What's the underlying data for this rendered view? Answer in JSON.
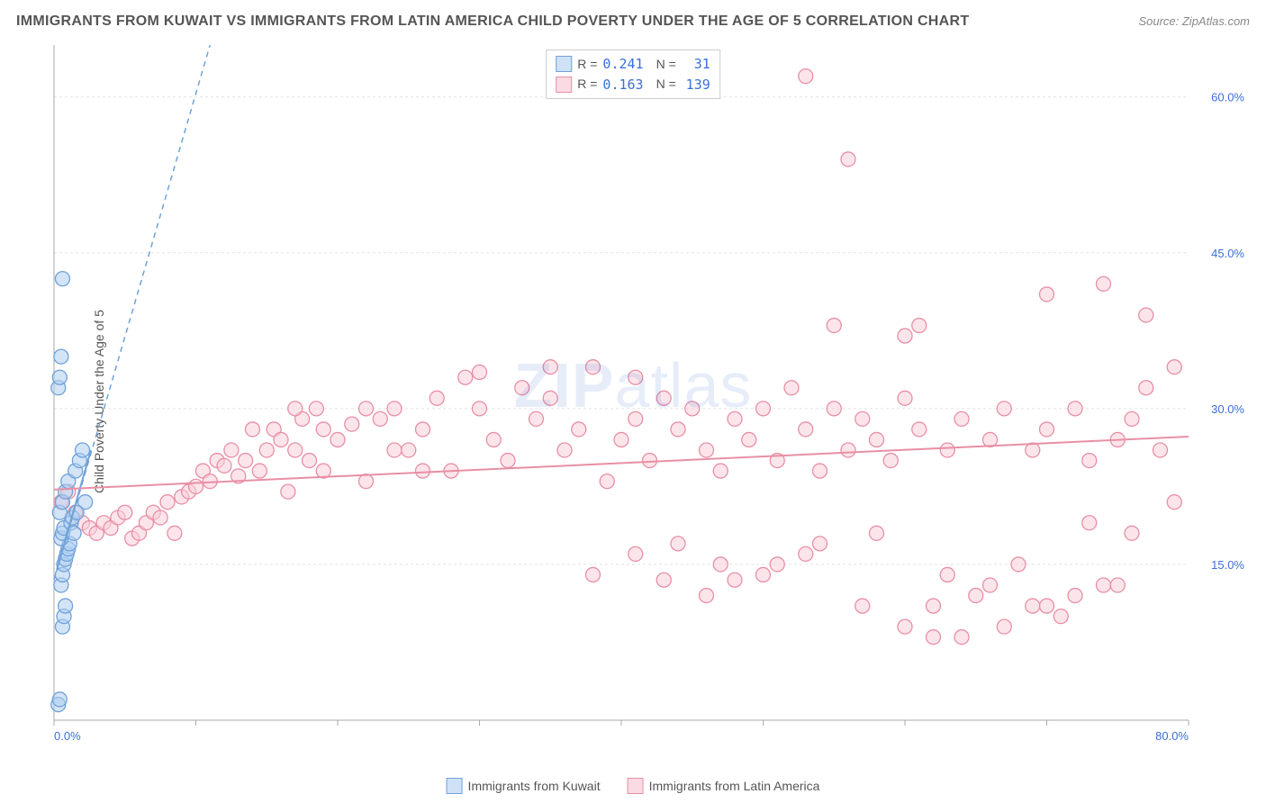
{
  "header": {
    "title": "IMMIGRANTS FROM KUWAIT VS IMMIGRANTS FROM LATIN AMERICA CHILD POVERTY UNDER THE AGE OF 5 CORRELATION CHART",
    "source": "Source: ZipAtlas.com"
  },
  "watermark": {
    "part1": "ZIP",
    "part2": "atlas"
  },
  "y_axis_label": "Child Poverty Under the Age of 5",
  "chart": {
    "type": "scatter",
    "xlim": [
      0,
      80
    ],
    "ylim": [
      0,
      65
    ],
    "plot_bg": "#ffffff",
    "grid_color": "#e2e2e2",
    "axis_color": "#aaaaaa",
    "tick_label_color": "#3b6fd6",
    "x_ticks": [
      0,
      10,
      20,
      30,
      40,
      50,
      60,
      70,
      80
    ],
    "x_tick_labels": {
      "0": "0.0%",
      "80": "80.0%"
    },
    "y_ticks": [
      15,
      30,
      45,
      60
    ],
    "y_tick_labels": {
      "15": "15.0%",
      "30": "30.0%",
      "45": "45.0%",
      "60": "60.0%"
    },
    "marker_radius": 8,
    "marker_stroke_width": 1.3,
    "trend_line_width": 2,
    "dashed_pattern": "6,5"
  },
  "series": [
    {
      "id": "kuwait",
      "label": "Immigrants from Kuwait",
      "fill": "#aecdf0",
      "stroke": "#6fa2d9",
      "swatch_fill": "#cfe1f7",
      "swatch_border": "#6fa2d9",
      "R": "0.241",
      "N": "31",
      "trend": {
        "solid": [
          [
            0.2,
            14.5
          ],
          [
            2.6,
            26
          ]
        ],
        "dashed": [
          [
            0,
            13.5
          ],
          [
            11,
            65
          ]
        ]
      },
      "points": [
        [
          0.3,
          1.5
        ],
        [
          0.4,
          2
        ],
        [
          0.6,
          9
        ],
        [
          0.7,
          10
        ],
        [
          0.8,
          11
        ],
        [
          0.5,
          13
        ],
        [
          0.6,
          14
        ],
        [
          0.7,
          15
        ],
        [
          0.8,
          15.5
        ],
        [
          0.9,
          16
        ],
        [
          1.0,
          16.5
        ],
        [
          1.1,
          17
        ],
        [
          0.5,
          17.5
        ],
        [
          0.6,
          18
        ],
        [
          0.7,
          18.5
        ],
        [
          1.2,
          19
        ],
        [
          1.3,
          19.5
        ],
        [
          0.4,
          20
        ],
        [
          0.6,
          21
        ],
        [
          0.8,
          22
        ],
        [
          1.0,
          23
        ],
        [
          1.5,
          24
        ],
        [
          1.8,
          25
        ],
        [
          2.0,
          26
        ],
        [
          0.3,
          32
        ],
        [
          0.4,
          33
        ],
        [
          0.5,
          35
        ],
        [
          0.6,
          42.5
        ],
        [
          2.2,
          21
        ],
        [
          1.6,
          20
        ],
        [
          1.4,
          18
        ]
      ]
    },
    {
      "id": "latin",
      "label": "Immigrants from Latin America",
      "fill": "#f9cfd9",
      "stroke": "#e88fa5",
      "swatch_fill": "#fadbe4",
      "swatch_border": "#e88fa5",
      "R": "0.163",
      "N": "139",
      "trend": {
        "solid": [
          [
            0,
            22.2
          ],
          [
            80,
            27.3
          ]
        ]
      },
      "points": [
        [
          0.5,
          21
        ],
        [
          1,
          22
        ],
        [
          1.5,
          20
        ],
        [
          2,
          19
        ],
        [
          2.5,
          18.5
        ],
        [
          3,
          18
        ],
        [
          3.5,
          19
        ],
        [
          4,
          18.5
        ],
        [
          4.5,
          19.5
        ],
        [
          5,
          20
        ],
        [
          5.5,
          17.5
        ],
        [
          6,
          18
        ],
        [
          6.5,
          19
        ],
        [
          7,
          20
        ],
        [
          7.5,
          19.5
        ],
        [
          8,
          21
        ],
        [
          8.5,
          18
        ],
        [
          9,
          21.5
        ],
        [
          9.5,
          22
        ],
        [
          10,
          22.5
        ],
        [
          10.5,
          24
        ],
        [
          11,
          23
        ],
        [
          11.5,
          25
        ],
        [
          12,
          24.5
        ],
        [
          12.5,
          26
        ],
        [
          13,
          23.5
        ],
        [
          13.5,
          25
        ],
        [
          14,
          28
        ],
        [
          14.5,
          24
        ],
        [
          15,
          26
        ],
        [
          15.5,
          28
        ],
        [
          16,
          27
        ],
        [
          16.5,
          22
        ],
        [
          17,
          26
        ],
        [
          17.5,
          29
        ],
        [
          18,
          25
        ],
        [
          18.5,
          30
        ],
        [
          19,
          24
        ],
        [
          20,
          27
        ],
        [
          21,
          28.5
        ],
        [
          22,
          23
        ],
        [
          23,
          29
        ],
        [
          24,
          30
        ],
        [
          25,
          26
        ],
        [
          26,
          28
        ],
        [
          27,
          31
        ],
        [
          28,
          24
        ],
        [
          29,
          33
        ],
        [
          30,
          30
        ],
        [
          31,
          27
        ],
        [
          32,
          25
        ],
        [
          33,
          32
        ],
        [
          34,
          29
        ],
        [
          35,
          31
        ],
        [
          36,
          26
        ],
        [
          37,
          28
        ],
        [
          38,
          34
        ],
        [
          39,
          23
        ],
        [
          40,
          27
        ],
        [
          41,
          29
        ],
        [
          42,
          25
        ],
        [
          43,
          31
        ],
        [
          44,
          28
        ],
        [
          45,
          30
        ],
        [
          46,
          26
        ],
        [
          47,
          24
        ],
        [
          48,
          29
        ],
        [
          49,
          27
        ],
        [
          50,
          30
        ],
        [
          51,
          25
        ],
        [
          52,
          32
        ],
        [
          53,
          28
        ],
        [
          54,
          24
        ],
        [
          55,
          30
        ],
        [
          56,
          26
        ],
        [
          57,
          29
        ],
        [
          58,
          27
        ],
        [
          59,
          25
        ],
        [
          60,
          31
        ],
        [
          61,
          28
        ],
        [
          62,
          8
        ],
        [
          63,
          26
        ],
        [
          64,
          29
        ],
        [
          65,
          12
        ],
        [
          66,
          27
        ],
        [
          67,
          30
        ],
        [
          68,
          15
        ],
        [
          69,
          26
        ],
        [
          70,
          28
        ],
        [
          71,
          10
        ],
        [
          72,
          30
        ],
        [
          73,
          25
        ],
        [
          74,
          13
        ],
        [
          75,
          27
        ],
        [
          76,
          29
        ],
        [
          77,
          32
        ],
        [
          78,
          26
        ],
        [
          79,
          34
        ],
        [
          50,
          14
        ],
        [
          55,
          38
        ],
        [
          60,
          37
        ],
        [
          62,
          11
        ],
        [
          53,
          62
        ],
        [
          56,
          54
        ],
        [
          74,
          42
        ],
        [
          77,
          39
        ],
        [
          46,
          12
        ],
        [
          48,
          13.5
        ],
        [
          51,
          15
        ],
        [
          53,
          16
        ],
        [
          57,
          11
        ],
        [
          60,
          9
        ],
        [
          63,
          14
        ],
        [
          66,
          13
        ],
        [
          69,
          11
        ],
        [
          72,
          12
        ],
        [
          75,
          13
        ],
        [
          64,
          8
        ],
        [
          67,
          9
        ],
        [
          70,
          11
        ],
        [
          35,
          34
        ],
        [
          30,
          33.5
        ],
        [
          41,
          33
        ],
        [
          43,
          13.5
        ],
        [
          54,
          17
        ],
        [
          58,
          18
        ],
        [
          70,
          41
        ],
        [
          73,
          19
        ],
        [
          76,
          18
        ],
        [
          79,
          21
        ],
        [
          38,
          14
        ],
        [
          41,
          16
        ],
        [
          44,
          17
        ],
        [
          47,
          15
        ],
        [
          61,
          38
        ],
        [
          22,
          30
        ],
        [
          24,
          26
        ],
        [
          26,
          24
        ],
        [
          17,
          30
        ],
        [
          19,
          28
        ]
      ]
    }
  ],
  "legend_top": {
    "R_label": "R =",
    "N_label": "N ="
  },
  "legend_bottom": {}
}
